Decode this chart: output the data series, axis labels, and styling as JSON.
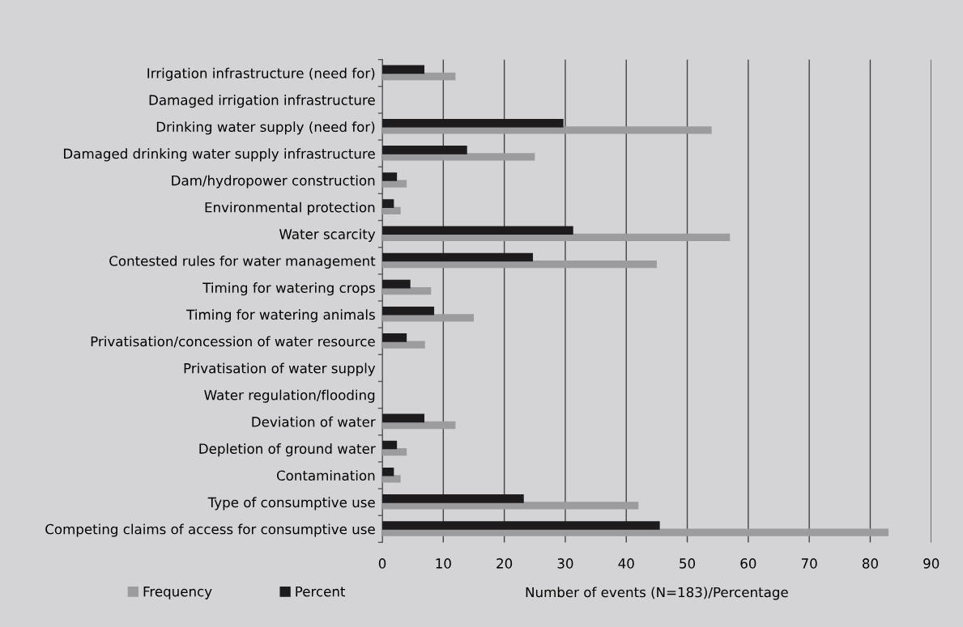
{
  "chart_data": {
    "type": "bar",
    "orientation": "horizontal",
    "categories": [
      "Irrigation infrastructure (need for)",
      "Damaged irrigation infrastructure",
      "Drinking water supply (need for)",
      "Damaged drinking water supply infrastructure",
      "Dam/hydropower construction",
      "Environmental protection",
      "Water scarcity",
      "Contested rules for water management",
      "Timing for watering crops",
      "Timing for watering animals",
      "Privatisation/concession of water resource",
      "Privatisation of water supply",
      "Water regulation/flooding",
      "Deviation of water",
      "Depletion of ground water",
      "Contamination",
      "Type of consumptive use",
      "Competing claims of access for consumptive use"
    ],
    "series": [
      {
        "name": "Frequency",
        "color": "#9c9c9f",
        "values": [
          12,
          0,
          54,
          25,
          4,
          3,
          57,
          45,
          8,
          15,
          7,
          0,
          0,
          12,
          4,
          3,
          42,
          83
        ]
      },
      {
        "name": "Percent",
        "color": "#1d1b1c",
        "values": [
          6.9,
          0,
          29.7,
          13.9,
          2.4,
          1.9,
          31.3,
          24.7,
          4.6,
          8.5,
          4.0,
          0,
          0,
          6.9,
          2.4,
          1.9,
          23.2,
          45.5
        ]
      }
    ],
    "xlabel": "Number of events (N=183)/Percentage",
    "xlim": [
      0,
      90
    ],
    "xticks": [
      0,
      10,
      20,
      30,
      40,
      50,
      60,
      70,
      80,
      90
    ],
    "grid": "x",
    "legend": "bottom left"
  }
}
